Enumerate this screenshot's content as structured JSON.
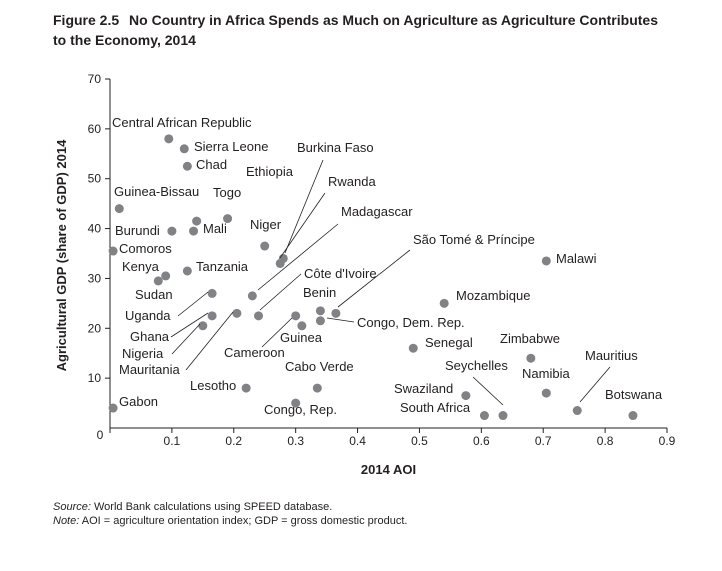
{
  "figure": {
    "label": "Figure 2.5",
    "title_line1": "No Country in Africa Spends as Much on Agriculture as Agriculture Contributes",
    "title_line2": "to the Economy, 2014"
  },
  "notes": {
    "source_label": "Source:",
    "source_text": "World Bank calculations using SPEED database.",
    "note_label": "Note:",
    "note_text": "AOI = agriculture orientation index; GDP = gross domestic product."
  },
  "chart_data": {
    "type": "scatter",
    "title": "No Country in Africa Spends as Much on Agriculture as Agriculture Contributes to the Economy, 2014",
    "xlabel": "2014 AOI",
    "ylabel": "Agricultural GDP (share of GDP) 2014",
    "xlim": [
      0,
      0.9
    ],
    "ylim": [
      0,
      70
    ],
    "xticks": [
      0,
      0.1,
      0.2,
      0.3,
      0.4,
      0.5,
      0.6,
      0.7,
      0.8,
      0.9
    ],
    "xtick_labels": [
      "0",
      "0.1",
      "0.2",
      "0.3",
      "0.4",
      "0.5",
      "0.6",
      "0.7",
      "0.8",
      "0.9"
    ],
    "yticks": [
      10,
      20,
      30,
      40,
      50,
      60,
      70
    ],
    "ytick_labels": [
      "10",
      "20",
      "30",
      "40",
      "50",
      "60",
      "70"
    ],
    "origin_label": "0",
    "grid": false,
    "points": [
      {
        "name": "Central African Republic",
        "x": 0.095,
        "y": 58
      },
      {
        "name": "Sierra Leone",
        "x": 0.12,
        "y": 56
      },
      {
        "name": "Chad",
        "x": 0.125,
        "y": 52.5
      },
      {
        "name": "Guinea-Bissau",
        "x": 0.015,
        "y": 44
      },
      {
        "name": "Togo",
        "x": 0.14,
        "y": 41.5
      },
      {
        "name": "Ethiopia",
        "x": 0.19,
        "y": 42
      },
      {
        "name": "Burundi",
        "x": 0.1,
        "y": 39.5
      },
      {
        "name": "Mali",
        "x": 0.135,
        "y": 39.5
      },
      {
        "name": "Niger",
        "x": 0.25,
        "y": 36.5
      },
      {
        "name": "Comoros",
        "x": 0.005,
        "y": 35.5
      },
      {
        "name": "Burkina Faso",
        "x": 0.28,
        "y": 34
      },
      {
        "name": "Rwanda",
        "x": 0.275,
        "y": 33
      },
      {
        "name": "Kenya",
        "x": 0.09,
        "y": 30.5
      },
      {
        "name": "Sudan",
        "x": 0.078,
        "y": 29.5
      },
      {
        "name": "Tanzania",
        "x": 0.125,
        "y": 31.5
      },
      {
        "name": "Uganda",
        "x": 0.165,
        "y": 27
      },
      {
        "name": "Madagascar",
        "x": 0.23,
        "y": 26.5
      },
      {
        "name": "Côte d'Ivoire",
        "x": 0.24,
        "y": 22.5
      },
      {
        "name": "Ghana",
        "x": 0.165,
        "y": 22.5
      },
      {
        "name": "Nigeria",
        "x": 0.15,
        "y": 20.5
      },
      {
        "name": "Mauritania",
        "x": 0.205,
        "y": 23
      },
      {
        "name": "Cameroon",
        "x": 0.3,
        "y": 22.5
      },
      {
        "name": "Guinea",
        "x": 0.31,
        "y": 20.5
      },
      {
        "name": "Benin",
        "x": 0.34,
        "y": 23.5
      },
      {
        "name": "São Tomé & Príncipe",
        "x": 0.365,
        "y": 23
      },
      {
        "name": "Congo, Dem. Rep.",
        "x": 0.34,
        "y": 21.5
      },
      {
        "name": "Mozambique",
        "x": 0.54,
        "y": 25
      },
      {
        "name": "Senegal",
        "x": 0.49,
        "y": 16
      },
      {
        "name": "Malawi",
        "x": 0.705,
        "y": 33.5
      },
      {
        "name": "Zimbabwe",
        "x": 0.68,
        "y": 14
      },
      {
        "name": "Cabo Verde",
        "x": 0.335,
        "y": 8
      },
      {
        "name": "Lesotho",
        "x": 0.22,
        "y": 8
      },
      {
        "name": "Congo, Rep.",
        "x": 0.3,
        "y": 5
      },
      {
        "name": "Gabon",
        "x": 0.005,
        "y": 4
      },
      {
        "name": "Swaziland",
        "x": 0.575,
        "y": 6.5
      },
      {
        "name": "South Africa",
        "x": 0.605,
        "y": 2.5
      },
      {
        "name": "Seychelles",
        "x": 0.635,
        "y": 2.5
      },
      {
        "name": "Namibia",
        "x": 0.705,
        "y": 7
      },
      {
        "name": "Mauritius",
        "x": 0.755,
        "y": 3.5
      },
      {
        "name": "Botswana",
        "x": 0.845,
        "y": 2.5
      }
    ]
  }
}
